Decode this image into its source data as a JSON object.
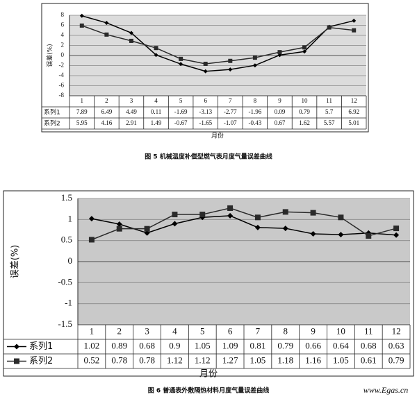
{
  "chart_data": [
    {
      "type": "line",
      "title": "图 5   机械温度补偿型燃气表月度气量误差曲线",
      "y_label": "误差(%)",
      "x_label": "月份",
      "categories": [
        "1",
        "2",
        "3",
        "4",
        "5",
        "6",
        "7",
        "8",
        "9",
        "10",
        "11",
        "12"
      ],
      "series": [
        {
          "name": "系列1",
          "color": "#000000",
          "marker": "diamond",
          "values": [
            7.89,
            6.49,
            4.49,
            0.11,
            -1.69,
            -3.13,
            -2.77,
            -1.96,
            0.09,
            0.79,
            5.7,
            6.92
          ]
        },
        {
          "name": "系列2",
          "color": "#2a2a2a",
          "marker": "square",
          "values": [
            5.95,
            4.16,
            2.91,
            1.49,
            -0.67,
            -1.65,
            -1.07,
            -0.43,
            0.67,
            1.62,
            5.57,
            5.01
          ]
        }
      ],
      "ylim": [
        -8,
        8
      ],
      "yticks": [
        -8,
        -6,
        -4,
        -2,
        0,
        2,
        4,
        6,
        8
      ],
      "grid": true,
      "legend_marker": false
    },
    {
      "type": "line",
      "title": "图 6   普通表外敷隔热材料月度气量误差曲线",
      "y_label": "误差(%)",
      "x_label": "月份",
      "categories": [
        "1",
        "2",
        "3",
        "4",
        "5",
        "6",
        "7",
        "8",
        "9",
        "10",
        "11",
        "12"
      ],
      "series": [
        {
          "name": "系列1",
          "color": "#000000",
          "marker": "diamond",
          "values": [
            1.02,
            0.89,
            0.68,
            0.9,
            1.05,
            1.09,
            0.81,
            0.79,
            0.66,
            0.64,
            0.68,
            0.63
          ]
        },
        {
          "name": "系列2",
          "color": "#2a2a2a",
          "marker": "square",
          "values": [
            0.52,
            0.78,
            0.78,
            1.12,
            1.12,
            1.27,
            1.05,
            1.18,
            1.16,
            1.05,
            0.61,
            0.79
          ]
        }
      ],
      "ylim": [
        -1.5,
        1.5
      ],
      "yticks": [
        -1.5,
        -1,
        -0.5,
        0,
        0.5,
        1,
        1.5
      ],
      "grid": true,
      "legend_marker": true
    }
  ],
  "watermark": "www.Egas.cn"
}
